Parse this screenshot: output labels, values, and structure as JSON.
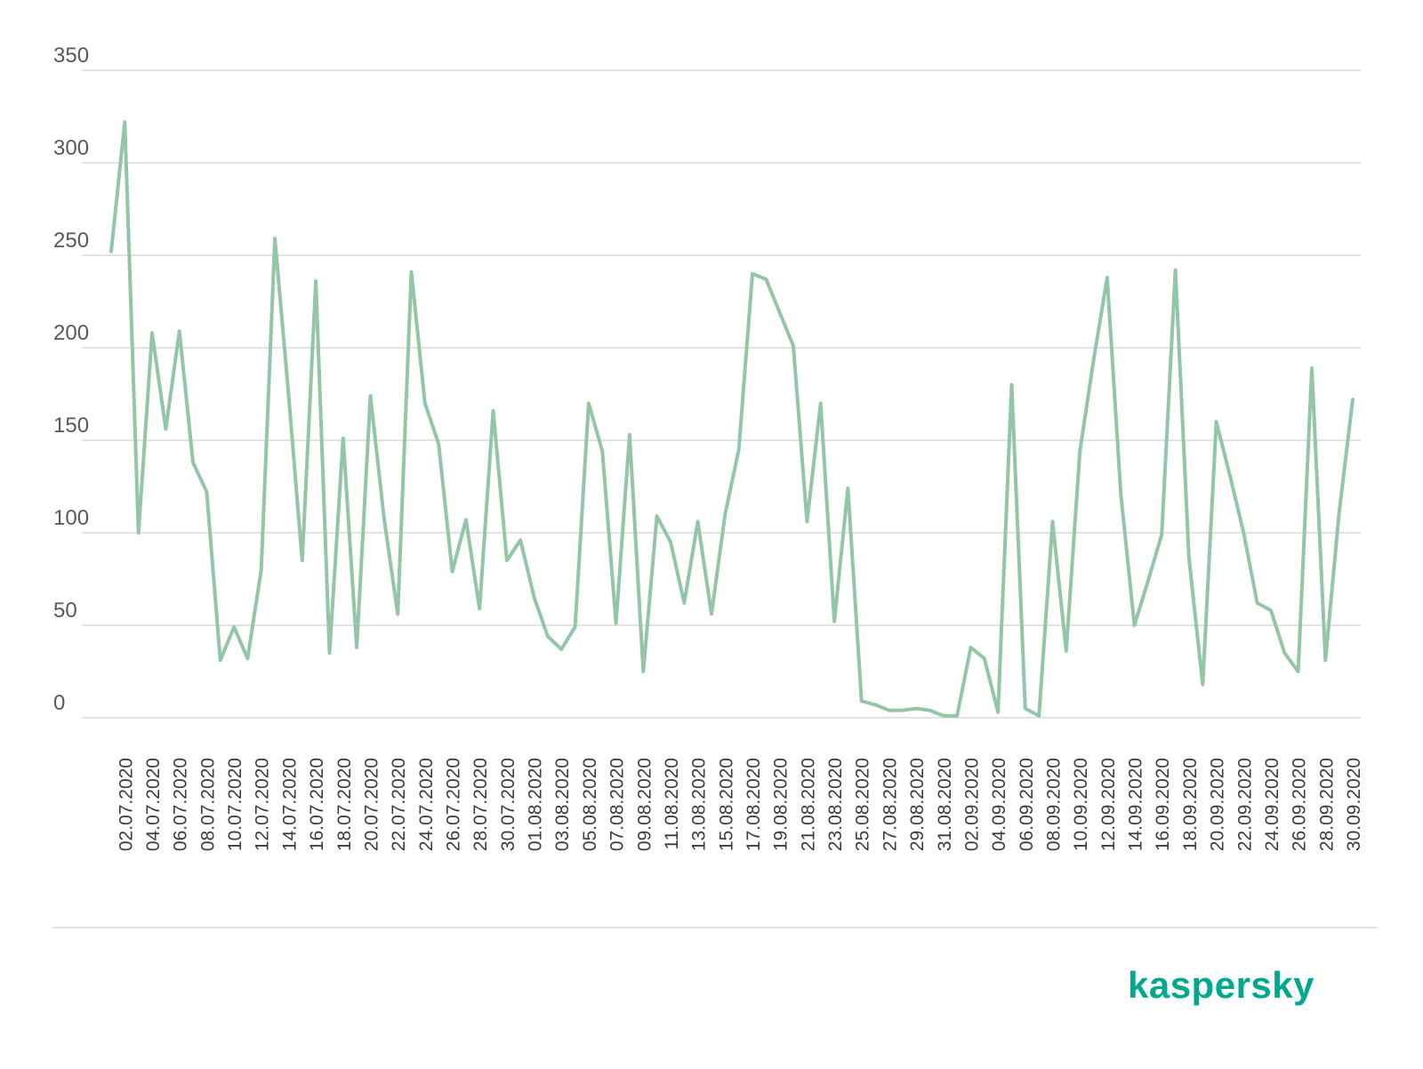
{
  "brand": {
    "logo_text": "kaspersky",
    "color": "#00a88e"
  },
  "colors": {
    "line": "#93c5a7",
    "grid": "#d9d9d9",
    "tick_text": "#595959",
    "date_text": "#3c3c3c"
  },
  "chart_data": {
    "type": "line",
    "title": "",
    "xlabel": "",
    "ylabel": "",
    "ylim": [
      0,
      350
    ],
    "y_ticks": [
      0,
      50,
      100,
      150,
      200,
      250,
      300,
      350
    ],
    "grid": true,
    "x_tick_labels": [
      "02.07.2020",
      "04.07.2020",
      "06.07.2020",
      "08.07.2020",
      "10.07.2020",
      "12.07.2020",
      "14.07.2020",
      "16.07.2020",
      "18.07.2020",
      "20.07.2020",
      "22.07.2020",
      "24.07.2020",
      "26.07.2020",
      "28.07.2020",
      "30.07.2020",
      "01.08.2020",
      "03.08.2020",
      "05.08.2020",
      "07.08.2020",
      "09.08.2020",
      "11.08.2020",
      "13.08.2020",
      "15.08.2020",
      "17.08.2020",
      "19.08.2020",
      "21.08.2020",
      "23.08.2020",
      "25.08.2020",
      "27.08.2020",
      "29.08.2020",
      "31.08.2020",
      "02.09.2020",
      "04.09.2020",
      "06.09.2020",
      "08.09.2020",
      "10.09.2020",
      "12.09.2020",
      "14.09.2020",
      "16.09.2020",
      "18.09.2020",
      "20.09.2020",
      "22.09.2020",
      "24.09.2020",
      "26.09.2020",
      "28.09.2020",
      "30.09.2020"
    ],
    "x": [
      "01.07.2020",
      "02.07.2020",
      "03.07.2020",
      "04.07.2020",
      "05.07.2020",
      "06.07.2020",
      "07.07.2020",
      "08.07.2020",
      "09.07.2020",
      "10.07.2020",
      "11.07.2020",
      "12.07.2020",
      "13.07.2020",
      "14.07.2020",
      "15.07.2020",
      "16.07.2020",
      "17.07.2020",
      "18.07.2020",
      "19.07.2020",
      "20.07.2020",
      "21.07.2020",
      "22.07.2020",
      "23.07.2020",
      "24.07.2020",
      "25.07.2020",
      "26.07.2020",
      "27.07.2020",
      "28.07.2020",
      "29.07.2020",
      "30.07.2020",
      "31.07.2020",
      "01.08.2020",
      "02.08.2020",
      "03.08.2020",
      "04.08.2020",
      "05.08.2020",
      "06.08.2020",
      "07.08.2020",
      "08.08.2020",
      "09.08.2020",
      "10.08.2020",
      "11.08.2020",
      "12.08.2020",
      "13.08.2020",
      "14.08.2020",
      "15.08.2020",
      "16.08.2020",
      "17.08.2020",
      "18.08.2020",
      "19.08.2020",
      "20.08.2020",
      "21.08.2020",
      "22.08.2020",
      "23.08.2020",
      "24.08.2020",
      "25.08.2020",
      "26.08.2020",
      "27.08.2020",
      "28.08.2020",
      "29.08.2020",
      "30.08.2020",
      "31.08.2020",
      "01.09.2020",
      "02.09.2020",
      "03.09.2020",
      "04.09.2020",
      "05.09.2020",
      "06.09.2020",
      "07.09.2020",
      "08.09.2020",
      "09.09.2020",
      "10.09.2020",
      "11.09.2020",
      "12.09.2020",
      "13.09.2020",
      "14.09.2020",
      "15.09.2020",
      "16.09.2020",
      "17.09.2020",
      "18.09.2020",
      "19.09.2020",
      "20.09.2020",
      "21.09.2020",
      "22.09.2020",
      "23.09.2020",
      "24.09.2020",
      "25.09.2020",
      "26.09.2020",
      "27.09.2020",
      "28.09.2020",
      "29.09.2020",
      "30.09.2020"
    ],
    "series": [
      {
        "values": [
          252,
          322,
          100,
          208,
          156,
          209,
          138,
          122,
          31,
          49,
          32,
          80,
          259,
          175,
          85,
          236,
          35,
          151,
          38,
          174,
          108,
          56,
          241,
          170,
          148,
          79,
          107,
          59,
          166,
          85,
          96,
          65,
          44,
          37,
          49,
          170,
          144,
          51,
          153,
          25,
          109,
          95,
          62,
          106,
          56,
          110,
          145,
          240,
          237,
          219,
          201,
          106,
          170,
          52,
          124,
          9,
          7,
          4,
          4,
          5,
          4,
          1,
          1,
          38,
          32,
          3,
          180,
          5,
          1,
          106,
          36,
          144,
          193,
          238,
          121,
          50,
          74,
          99,
          242,
          86,
          18,
          160,
          131,
          100,
          62,
          58,
          35,
          25,
          189,
          31,
          111,
          172
        ]
      }
    ]
  }
}
